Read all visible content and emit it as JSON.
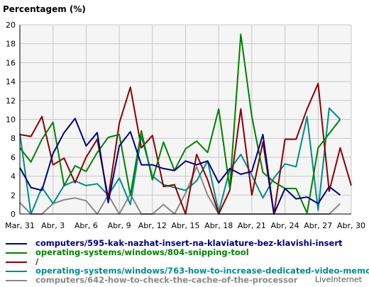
{
  "chart_data": {
    "type": "line",
    "ylabel": "Percentagem (%)",
    "ylim": [
      0,
      20
    ],
    "yticks": [
      "0",
      "2",
      "4",
      "6",
      "8",
      "10",
      "12",
      "14",
      "16",
      "18",
      "20"
    ],
    "x_tick_labels": [
      "Mar, 31",
      "Abr, 3",
      "Abr, 6",
      "Abr, 9",
      "Abr, 12",
      "Abr, 15",
      "Abr, 18",
      "Abr, 21",
      "Abr, 24",
      "Abr, 27",
      "Abr, 30"
    ],
    "grid": true,
    "series": [
      {
        "name": "computers/595-kak-nazhat-insert-na-klaviature-bez-klavishi-insert",
        "color": "#00007f",
        "values": [
          4.9,
          2.8,
          2.5,
          6.4,
          8.6,
          10.1,
          7.2,
          8.6,
          1.2,
          7.2,
          8.7,
          5.2,
          5.2,
          4.8,
          4.6,
          5.6,
          5.2,
          5.6,
          3.3,
          4.8,
          4.2,
          4.5,
          8.4,
          0.0,
          2.7,
          1.6,
          1.8,
          1.1,
          2.9,
          2.0
        ]
      },
      {
        "name": "operating-systems/windows/804-snipping-tool",
        "color": "#008000",
        "values": [
          7.0,
          5.5,
          7.9,
          9.7,
          3.0,
          5.1,
          4.5,
          6.5,
          8.1,
          8.4,
          2.0,
          8.8,
          3.6,
          7.6,
          4.6,
          6.9,
          7.7,
          6.5,
          11.1,
          2.7,
          19.0,
          10.3,
          4.4,
          3.4,
          2.7,
          2.7,
          0.1,
          7.0,
          8.5,
          10.0
        ]
      },
      {
        "name": "/",
        "color": "#8b0000",
        "values": [
          8.4,
          8.2,
          10.3,
          5.2,
          5.9,
          3.3,
          6.0,
          7.9,
          1.7,
          9.6,
          13.4,
          7.0,
          8.3,
          2.9,
          3.1,
          0.0,
          6.3,
          3.6,
          0.0,
          2.5,
          11.1,
          2.0,
          7.6,
          0.0,
          7.9,
          7.9,
          11.1,
          13.8,
          2.4,
          7.0,
          3.0
        ]
      },
      {
        "name": "operating-systems/windows/763-how-to-increase-dedicated-video-memory",
        "color": "#008b8b",
        "values": [
          8.5,
          0.0,
          2.8,
          1.1,
          3.0,
          3.5,
          3.0,
          3.2,
          2.0,
          3.8,
          1.0,
          8.2,
          4.0,
          3.1,
          2.8,
          2.5,
          3.5,
          5.6,
          0.2,
          4.7,
          6.3,
          4.1,
          1.7,
          3.8,
          5.3,
          5.0,
          10.3,
          0.4,
          11.2,
          10.0
        ]
      },
      {
        "name": "computers/642-how-to-check-the-cache-of-the-processor",
        "color": "#888888",
        "values": [
          1.2,
          0.0,
          0.0,
          1.1,
          1.5,
          1.7,
          1.4,
          0.0,
          2.0,
          0.0,
          2.1,
          0.0,
          0.0,
          1.0,
          0.0,
          2.2,
          5.0,
          2.0,
          0.0,
          0.0,
          0.0,
          0.0,
          0.0,
          0.0,
          0.0,
          0.0,
          0.0,
          0.0,
          0.0,
          1.1
        ]
      }
    ]
  },
  "watermark": "LiveInternet"
}
